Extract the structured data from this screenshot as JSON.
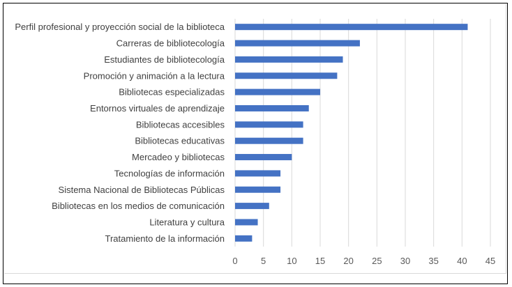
{
  "chart_data": {
    "type": "bar",
    "orientation": "horizontal",
    "title": "",
    "xlabel": "",
    "ylabel": "",
    "categories": [
      "Perfil profesional y proyección social de la biblioteca",
      "Carreras de bibliotecología",
      "Estudiantes de bibliotecología",
      "Promoción y animación a la lectura",
      "Bibliotecas especializadas",
      "Entornos virtuales de aprendizaje",
      "Bibliotecas accesibles",
      "Bibliotecas educativas",
      "Mercadeo y bibliotecas",
      "Tecnologías de información",
      "Sistema Nacional de Bibliotecas Públicas",
      "Bibliotecas en los medios de comunicación",
      "Literatura y cultura",
      "Tratamiento de la información"
    ],
    "values": [
      41,
      22,
      19,
      18,
      15,
      13,
      12,
      12,
      10,
      8,
      8,
      6,
      4,
      3
    ],
    "xlim": [
      0,
      45
    ],
    "xticks": [
      "0",
      "5",
      "10",
      "15",
      "20",
      "25",
      "30",
      "35",
      "40",
      "45"
    ],
    "grid": true,
    "bar_color": "#4472C4",
    "legend": "none"
  }
}
